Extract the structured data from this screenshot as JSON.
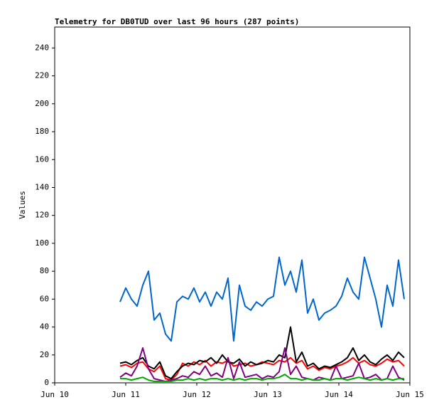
{
  "chart_data": {
    "type": "line",
    "title": "Telemetry for DB0TUD over last 96 hours (287 points)",
    "y_label": "Values",
    "x": [
      10.92,
      11,
      11.08,
      11.16,
      11.24,
      11.32,
      11.4,
      11.48,
      11.56,
      11.64,
      11.72,
      11.8,
      11.88,
      11.96,
      12.04,
      12.12,
      12.2,
      12.28,
      12.36,
      12.44,
      12.52,
      12.6,
      12.68,
      12.76,
      12.84,
      12.92,
      13,
      13.08,
      13.16,
      13.24,
      13.32,
      13.4,
      13.48,
      13.56,
      13.64,
      13.72,
      13.8,
      13.88,
      13.96,
      14.04,
      14.12,
      14.2,
      14.28,
      14.36,
      14.44,
      14.52,
      14.6,
      14.68,
      14.76,
      14.84,
      14.92
    ],
    "series": [
      {
        "color": "#0066cc",
        "values": [
          58,
          68,
          60,
          55,
          70,
          80,
          45,
          50,
          35,
          30,
          58,
          62,
          60,
          68,
          58,
          65,
          55,
          65,
          60,
          75,
          30,
          70,
          55,
          52,
          58,
          55,
          60,
          62,
          90,
          70,
          80,
          65,
          88,
          50,
          60,
          45,
          50,
          52,
          55,
          62,
          75,
          65,
          60,
          90,
          75,
          60,
          40,
          70,
          55,
          88,
          60
        ]
      },
      {
        "color": "#ff0000",
        "values": [
          12,
          13,
          11,
          14,
          15,
          10,
          8,
          12,
          3,
          2,
          6,
          14,
          12,
          15,
          13,
          16,
          12,
          15,
          14,
          16,
          12,
          13,
          14,
          12,
          13,
          15,
          14,
          13,
          16,
          15,
          18,
          14,
          16,
          10,
          12,
          9,
          11,
          10,
          12,
          13,
          15,
          18,
          14,
          16,
          13,
          12,
          14,
          17,
          15,
          16,
          12
        ]
      },
      {
        "color": "#000000",
        "values": [
          14,
          15,
          13,
          16,
          18,
          12,
          10,
          15,
          5,
          3,
          8,
          12,
          14,
          13,
          16,
          15,
          18,
          14,
          20,
          15,
          14,
          17,
          12,
          15,
          13,
          14,
          16,
          15,
          20,
          18,
          40,
          15,
          22,
          12,
          14,
          10,
          12,
          11,
          13,
          15,
          18,
          25,
          16,
          20,
          15,
          13,
          17,
          20,
          16,
          22,
          18
        ]
      },
      {
        "color": "#800080",
        "values": [
          4,
          7,
          5,
          12,
          25,
          10,
          3,
          2,
          1,
          2,
          3,
          5,
          4,
          8,
          6,
          12,
          5,
          7,
          4,
          18,
          3,
          15,
          4,
          5,
          6,
          3,
          5,
          4,
          8,
          25,
          6,
          12,
          4,
          3,
          2,
          4,
          3,
          2,
          12,
          3,
          4,
          5,
          14,
          3,
          4,
          6,
          2,
          3,
          12,
          4,
          2
        ]
      },
      {
        "color": "#00aa00",
        "values": [
          3,
          3,
          2,
          3,
          4,
          2,
          1,
          1,
          1,
          1,
          2,
          2,
          3,
          2,
          3,
          2,
          3,
          3,
          2,
          3,
          2,
          3,
          2,
          3,
          3,
          2,
          3,
          3,
          4,
          6,
          3,
          3,
          2,
          3,
          2,
          2,
          3,
          2,
          3,
          3,
          2,
          3,
          4,
          3,
          2,
          3,
          2,
          3,
          2,
          3,
          3
        ]
      }
    ],
    "xlim": [
      10,
      15
    ],
    "xticks": [
      {
        "value": 10,
        "label": "Jun 10"
      },
      {
        "value": 11,
        "label": "Jun 11"
      },
      {
        "value": 12,
        "label": "Jun 12"
      },
      {
        "value": 13,
        "label": "Jun 13"
      },
      {
        "value": 14,
        "label": "Jun 14"
      },
      {
        "value": 15,
        "label": "Jun 15"
      }
    ],
    "ylim": [
      0,
      255
    ],
    "yticks": [
      0,
      20,
      40,
      60,
      80,
      100,
      120,
      140,
      160,
      180,
      200,
      220,
      240
    ]
  }
}
